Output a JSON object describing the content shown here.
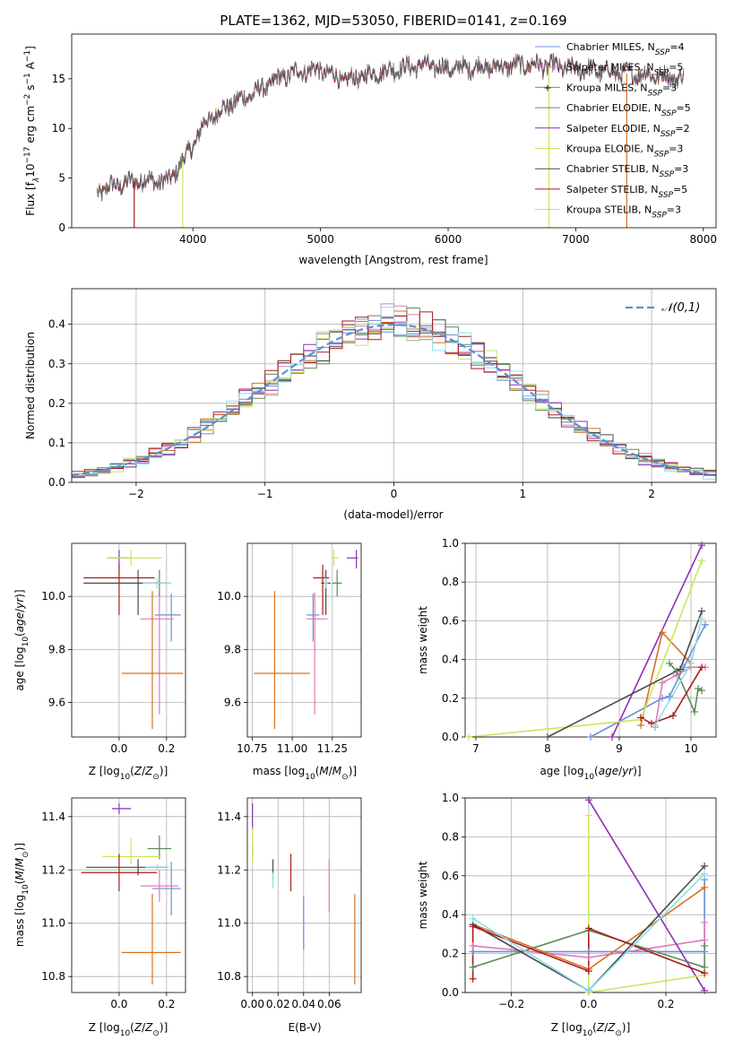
{
  "figure_title": "PLATE=1362, MJD=53050, FIBERID=0141, z=0.169",
  "models": [
    {
      "label": "Chabrier MILES, N_SSP=4",
      "base": "Chabrier MILES, N",
      "sub": "SSP",
      "suffix": "=4",
      "color": "#6a8fd8"
    },
    {
      "label": "Salpeter MILES, N_SSP=5",
      "base": "Salpeter MILES, N",
      "sub": "SSP",
      "suffix": "=5",
      "color": "#e07ab6"
    },
    {
      "label": "Kroupa MILES, N_SSP=3",
      "base": "Kroupa MILES, N",
      "sub": "SSP",
      "suffix": "=3",
      "color": "#d9711f"
    },
    {
      "label": "Chabrier ELODIE, N_SSP=5",
      "base": "Chabrier ELODIE, N",
      "sub": "SSP",
      "suffix": "=5",
      "color": "#5e8a5a"
    },
    {
      "label": "Salpeter ELODIE, N_SSP=2",
      "base": "Salpeter ELODIE, N",
      "sub": "SSP",
      "suffix": "=2",
      "color": "#8e2fb8"
    },
    {
      "label": "Kroupa ELODIE, N_SSP=3",
      "base": "Kroupa ELODIE, N",
      "sub": "SSP",
      "suffix": "=3",
      "color": "#c8e85c"
    },
    {
      "label": "Chabrier STELIB, N_SSP=3",
      "base": "Chabrier STELIB, N",
      "sub": "SSP",
      "suffix": "=3",
      "color": "#4a4a4a"
    },
    {
      "label": "Salpeter STELIB, N_SSP=5",
      "base": "Salpeter STELIB, N",
      "sub": "SSP",
      "suffix": "=5",
      "color": "#a81c1c"
    },
    {
      "label": "Kroupa STELIB, N_SSP=3",
      "base": "Kroupa STELIB, N",
      "sub": "SSP",
      "suffix": "=3",
      "color": "#8fdde8"
    }
  ],
  "chart_data": [
    {
      "id": "spectrum",
      "type": "line",
      "title": "PLATE=1362, MJD=53050, FIBERID=0141, z=0.169",
      "xlabel": "wavelength [Angstrom, rest frame]",
      "ylabel": "Flux [f_λ 10^-17 erg cm^-2 s^-1 A^-1]",
      "xlim": [
        3050,
        8100
      ],
      "ylim": [
        0,
        19.5
      ],
      "xticks": [
        4000,
        5000,
        6000,
        7000,
        8000
      ],
      "yticks": [
        0,
        5,
        10,
        15
      ],
      "grid": false,
      "legend": "right",
      "continuum_x": [
        3250,
        3400,
        3600,
        3800,
        3950,
        4100,
        4300,
        4500,
        4700,
        4850,
        5000,
        5200,
        5400,
        5600,
        5800,
        6000,
        6200,
        6400,
        6600,
        6800,
        7000,
        7200,
        7400,
        7600,
        7850
      ],
      "continuum_y": [
        3.6,
        4.3,
        4.8,
        4.6,
        7.2,
        10.7,
        12.5,
        13.7,
        15.2,
        15.8,
        15.9,
        14.8,
        15.5,
        16.0,
        16.4,
        16.0,
        16.2,
        16.2,
        16.4,
        16.3,
        16.0,
        15.8,
        15.5,
        15.4,
        15.0
      ]
    },
    {
      "id": "residuals",
      "type": "histogram",
      "xlabel": "(data-model)/error",
      "ylabel": "Normed distribution",
      "xlim": [
        -2.5,
        2.5
      ],
      "ylim": [
        0,
        0.49
      ],
      "xticks": [
        -2,
        -1,
        0,
        1,
        2
      ],
      "yticks": [
        0.0,
        0.1,
        0.2,
        0.3,
        0.4
      ],
      "grid": true,
      "legend": "top-right",
      "reference_label": "𝒩(0,1)",
      "reference_color": "#5b8ed6",
      "bin_width": 0.1
    },
    {
      "id": "age_vs_Z",
      "type": "errorbar",
      "xlabel": "Z [log10(Z/Z⊙)]",
      "ylabel": "age [log10(age/yr)]",
      "xlim": [
        -0.2,
        0.28
      ],
      "ylim": [
        9.47,
        10.2
      ],
      "xticks": [
        0.0,
        0.2
      ],
      "yticks": [
        9.6,
        9.8,
        10.0
      ],
      "grid": true,
      "points": [
        {
          "model": "Chabrier MILES",
          "x": 0.22,
          "xerr": [
            0.07,
            0.04
          ],
          "y": 9.93,
          "yerr": [
            0.1,
            0.08
          ]
        },
        {
          "model": "Salpeter MILES",
          "x": 0.17,
          "xerr": [
            0.08,
            0.06
          ],
          "y": 9.915,
          "yerr": [
            0.36,
            0.1
          ]
        },
        {
          "model": "Kroupa MILES",
          "x": 0.14,
          "xerr": [
            0.13,
            0.13
          ],
          "y": 9.71,
          "yerr": [
            0.21,
            0.31
          ]
        },
        {
          "model": "Chabrier ELODIE",
          "x": 0.17,
          "xerr": [
            0.06,
            0.05
          ],
          "y": 10.05,
          "yerr": [
            0.05,
            0.05
          ]
        },
        {
          "model": "Salpeter ELODIE",
          "x": 0.0,
          "xerr": [
            0.05,
            0.05
          ],
          "y": 10.145,
          "yerr": [
            0.04,
            0.03
          ]
        },
        {
          "model": "Kroupa ELODIE",
          "x": 0.05,
          "xerr": [
            0.1,
            0.13
          ],
          "y": 10.145,
          "yerr": [
            0.03,
            0.03
          ]
        },
        {
          "model": "Chabrier STELIB",
          "x": 0.08,
          "xerr": [
            0.23,
            0.1
          ],
          "y": 10.05,
          "yerr": [
            0.12,
            0.05
          ]
        },
        {
          "model": "Salpeter STELIB",
          "x": 0.0,
          "xerr": [
            0.15,
            0.15
          ],
          "y": 10.07,
          "yerr": [
            0.14,
            0.05
          ]
        },
        {
          "model": "Kroupa STELIB",
          "x": 0.16,
          "xerr": [
            0.06,
            0.06
          ],
          "y": 10.05,
          "yerr": [
            0.02,
            0.02
          ]
        }
      ]
    },
    {
      "id": "age_vs_mass",
      "type": "errorbar",
      "xlabel": "mass [log10(M/M⊙)]",
      "ylabel": "",
      "xlim": [
        10.72,
        11.43
      ],
      "ylim": [
        9.47,
        10.2
      ],
      "xticks": [
        10.75,
        11.0,
        11.25
      ],
      "yticks": [
        9.6,
        9.8,
        10.0
      ],
      "grid": true,
      "points": [
        {
          "model": "Chabrier MILES",
          "x": 11.13,
          "xerr": [
            0.04,
            0.04
          ],
          "y": 9.93,
          "yerr": [
            0.1,
            0.08
          ]
        },
        {
          "model": "Salpeter MILES",
          "x": 11.14,
          "xerr": [
            0.05,
            0.08
          ],
          "y": 9.915,
          "yerr": [
            0.36,
            0.1
          ]
        },
        {
          "model": "Kroupa MILES",
          "x": 10.89,
          "xerr": [
            0.13,
            0.22
          ],
          "y": 9.71,
          "yerr": [
            0.21,
            0.31
          ]
        },
        {
          "model": "Chabrier ELODIE",
          "x": 11.28,
          "xerr": [
            0.03,
            0.03
          ],
          "y": 10.05,
          "yerr": [
            0.05,
            0.05
          ]
        },
        {
          "model": "Salpeter ELODIE",
          "x": 11.4,
          "xerr": [
            0.06,
            0.01
          ],
          "y": 10.145,
          "yerr": [
            0.04,
            0.03
          ]
        },
        {
          "model": "Kroupa ELODIE",
          "x": 11.26,
          "xerr": [
            0.02,
            0.03
          ],
          "y": 10.145,
          "yerr": [
            0.03,
            0.03
          ]
        },
        {
          "model": "Chabrier STELIB",
          "x": 11.21,
          "xerr": [
            0.03,
            0.03
          ],
          "y": 10.05,
          "yerr": [
            0.12,
            0.05
          ]
        },
        {
          "model": "Salpeter STELIB",
          "x": 11.19,
          "xerr": [
            0.06,
            0.04
          ],
          "y": 10.07,
          "yerr": [
            0.14,
            0.05
          ]
        },
        {
          "model": "Kroupa STELIB",
          "x": 11.21,
          "xerr": [
            0.01,
            0.01
          ],
          "y": 10.05,
          "yerr": [
            0.02,
            0.02
          ]
        }
      ]
    },
    {
      "id": "weight_vs_age",
      "type": "line",
      "xlabel": "age [log10(age/yr)]",
      "ylabel": "mass weight",
      "xlim": [
        6.85,
        10.35
      ],
      "ylim": [
        0.0,
        1.0
      ],
      "xticks": [
        7,
        8,
        9,
        10
      ],
      "yticks": [
        0.0,
        0.2,
        0.4,
        0.6,
        0.8,
        1.0
      ],
      "grid": true,
      "series": [
        {
          "model": "Chabrier MILES",
          "x": [
            8.6,
            9.6,
            9.7,
            9.9,
            10.2
          ],
          "y": [
            0.0,
            0.2,
            0.21,
            0.36,
            0.58
          ]
        },
        {
          "model": "Salpeter MILES",
          "x": [
            9.5,
            9.6,
            9.8,
            10.0,
            10.2
          ],
          "y": [
            0.05,
            0.28,
            0.32,
            0.36,
            0.36
          ]
        },
        {
          "model": "Kroupa MILES",
          "x": [
            9.3,
            9.6,
            10.0
          ],
          "y": [
            0.06,
            0.54,
            0.38
          ]
        },
        {
          "model": "Chabrier ELODIE",
          "x": [
            9.7,
            9.8,
            10.05,
            10.1,
            10.15
          ],
          "y": [
            0.38,
            0.34,
            0.13,
            0.25,
            0.24
          ]
        },
        {
          "model": "Salpeter ELODIE",
          "x": [
            8.9,
            10.15
          ],
          "y": [
            0.0,
            0.99
          ]
        },
        {
          "model": "Kroupa ELODIE",
          "x": [
            6.9,
            9.3,
            10.15
          ],
          "y": [
            0.0,
            0.09,
            0.91
          ]
        },
        {
          "model": "Chabrier STELIB",
          "x": [
            8.0,
            9.85,
            10.15
          ],
          "y": [
            0.0,
            0.35,
            0.65
          ]
        },
        {
          "model": "Salpeter STELIB",
          "x": [
            9.3,
            9.45,
            9.75,
            10.15
          ],
          "y": [
            0.1,
            0.07,
            0.11,
            0.36
          ]
        },
        {
          "model": "Kroupa STELIB",
          "x": [
            9.5,
            10.0,
            10.15
          ],
          "y": [
            0.06,
            0.38,
            0.61
          ]
        }
      ]
    },
    {
      "id": "mass_vs_Z",
      "type": "errorbar",
      "xlabel": "Z [log10(Z/Z⊙)]",
      "ylabel": "mass [log10(M/M⊙)]",
      "xlim": [
        -0.2,
        0.28
      ],
      "ylim": [
        10.74,
        11.47
      ],
      "xticks": [
        0.0,
        0.2
      ],
      "yticks": [
        10.8,
        11.0,
        11.2,
        11.4
      ],
      "grid": true,
      "points": [
        {
          "model": "Chabrier MILES",
          "x": 0.22,
          "xerr": [
            0.08,
            0.04
          ],
          "y": 11.13,
          "yerr": [
            0.1,
            0.1
          ]
        },
        {
          "model": "Salpeter MILES",
          "x": 0.17,
          "xerr": [
            0.08,
            0.08
          ],
          "y": 11.14,
          "yerr": [
            0.06,
            0.06
          ]
        },
        {
          "model": "Kroupa MILES",
          "x": 0.14,
          "xerr": [
            0.13,
            0.12
          ],
          "y": 10.89,
          "yerr": [
            0.12,
            0.22
          ]
        },
        {
          "model": "Chabrier ELODIE",
          "x": 0.17,
          "xerr": [
            0.05,
            0.05
          ],
          "y": 11.28,
          "yerr": [
            0.04,
            0.05
          ]
        },
        {
          "model": "Salpeter ELODIE",
          "x": 0.0,
          "xerr": [
            0.03,
            0.05
          ],
          "y": 11.43,
          "yerr": [
            0.02,
            0.02
          ]
        },
        {
          "model": "Kroupa ELODIE",
          "x": 0.05,
          "xerr": [
            0.12,
            0.12
          ],
          "y": 11.25,
          "yerr": [
            0.03,
            0.07
          ]
        },
        {
          "model": "Chabrier STELIB",
          "x": 0.08,
          "xerr": [
            0.22,
            0.12
          ],
          "y": 11.21,
          "yerr": [
            0.03,
            0.03
          ]
        },
        {
          "model": "Salpeter STELIB",
          "x": 0.0,
          "xerr": [
            0.16,
            0.16
          ],
          "y": 11.19,
          "yerr": [
            0.07,
            0.07
          ]
        },
        {
          "model": "Kroupa STELIB",
          "x": 0.16,
          "xerr": [
            0.05,
            0.05
          ],
          "y": 11.21,
          "yerr": [
            0.01,
            0.01
          ]
        }
      ]
    },
    {
      "id": "mass_vs_EBV",
      "type": "errorbar",
      "xlabel": "E(B-V)",
      "ylabel": "",
      "xlim": [
        -0.004,
        0.085
      ],
      "ylim": [
        10.74,
        11.47
      ],
      "xticks": [
        0.0,
        0.02,
        0.04,
        0.06
      ],
      "yticks": [
        10.8,
        11.0,
        11.2,
        11.4
      ],
      "grid": true,
      "points": [
        {
          "model": "Chabrier MILES",
          "x": 0.04,
          "y": 11.0,
          "yerr": [
            0.1,
            0.1
          ]
        },
        {
          "model": "Salpeter MILES",
          "x": 0.06,
          "y": 11.14,
          "yerr": [
            0.1,
            0.1
          ]
        },
        {
          "model": "Kroupa MILES",
          "x": 0.08,
          "y": 10.94,
          "yerr": [
            0.17,
            0.17
          ]
        },
        {
          "model": "Chabrier ELODIE",
          "x": 0.0,
          "y": 11.27,
          "yerr": [
            0.02,
            0.02
          ]
        },
        {
          "model": "Salpeter ELODIE",
          "x": 0.0,
          "y": 11.4,
          "yerr": [
            0.05,
            0.05
          ]
        },
        {
          "model": "Kroupa ELODIE",
          "x": 0.0,
          "y": 11.29,
          "yerr": [
            0.07,
            0.07
          ]
        },
        {
          "model": "Chabrier STELIB",
          "x": 0.016,
          "y": 11.2,
          "yerr": [
            0.04,
            0.04
          ]
        },
        {
          "model": "Salpeter STELIB",
          "x": 0.03,
          "y": 11.19,
          "yerr": [
            0.07,
            0.07
          ]
        },
        {
          "model": "Kroupa STELIB",
          "x": 0.016,
          "y": 11.16,
          "yerr": [
            0.03,
            0.03
          ]
        }
      ]
    },
    {
      "id": "weight_vs_Z",
      "type": "line",
      "xlabel": "Z [log10(Z/Z⊙)]",
      "ylabel": "mass weight",
      "xlim": [
        -0.32,
        0.33
      ],
      "ylim": [
        0.0,
        1.0
      ],
      "xticks": [
        -0.2,
        0.0,
        0.2
      ],
      "yticks": [
        0.0,
        0.2,
        0.4,
        0.6,
        0.8,
        1.0
      ],
      "grid": true,
      "series": [
        {
          "model": "Chabrier MILES",
          "x": [
            -0.3,
            0.0,
            0.3,
            0.3
          ],
          "y": [
            0.21,
            0.21,
            0.21,
            0.58
          ]
        },
        {
          "model": "Salpeter MILES",
          "x": [
            -0.3,
            0.0,
            0.3,
            0.3
          ],
          "y": [
            0.24,
            0.18,
            0.27,
            0.36
          ]
        },
        {
          "model": "Kroupa MILES",
          "x": [
            -0.3,
            0.0,
            0.3
          ],
          "y": [
            0.35,
            0.12,
            0.54
          ]
        },
        {
          "model": "Chabrier ELODIE",
          "x": [
            -0.3,
            0.0,
            0.3,
            0.3
          ],
          "y": [
            0.13,
            0.32,
            0.13,
            0.24
          ]
        },
        {
          "model": "Salpeter ELODIE",
          "x": [
            0.0,
            0.3
          ],
          "y": [
            0.99,
            0.01
          ]
        },
        {
          "model": "Kroupa ELODIE",
          "x": [
            0.0,
            0.0,
            0.3
          ],
          "y": [
            0.91,
            0.0,
            0.09
          ]
        },
        {
          "model": "Chabrier STELIB",
          "x": [
            -0.3,
            0.0,
            0.3
          ],
          "y": [
            0.35,
            0.01,
            0.65
          ]
        },
        {
          "model": "Salpeter STELIB",
          "x": [
            -0.3,
            -0.3,
            0.0,
            0.0,
            0.3
          ],
          "y": [
            0.07,
            0.34,
            0.11,
            0.33,
            0.1
          ]
        },
        {
          "model": "Kroupa STELIB",
          "x": [
            -0.3,
            0.0,
            0.3
          ],
          "y": [
            0.38,
            0.01,
            0.61
          ]
        }
      ]
    }
  ]
}
